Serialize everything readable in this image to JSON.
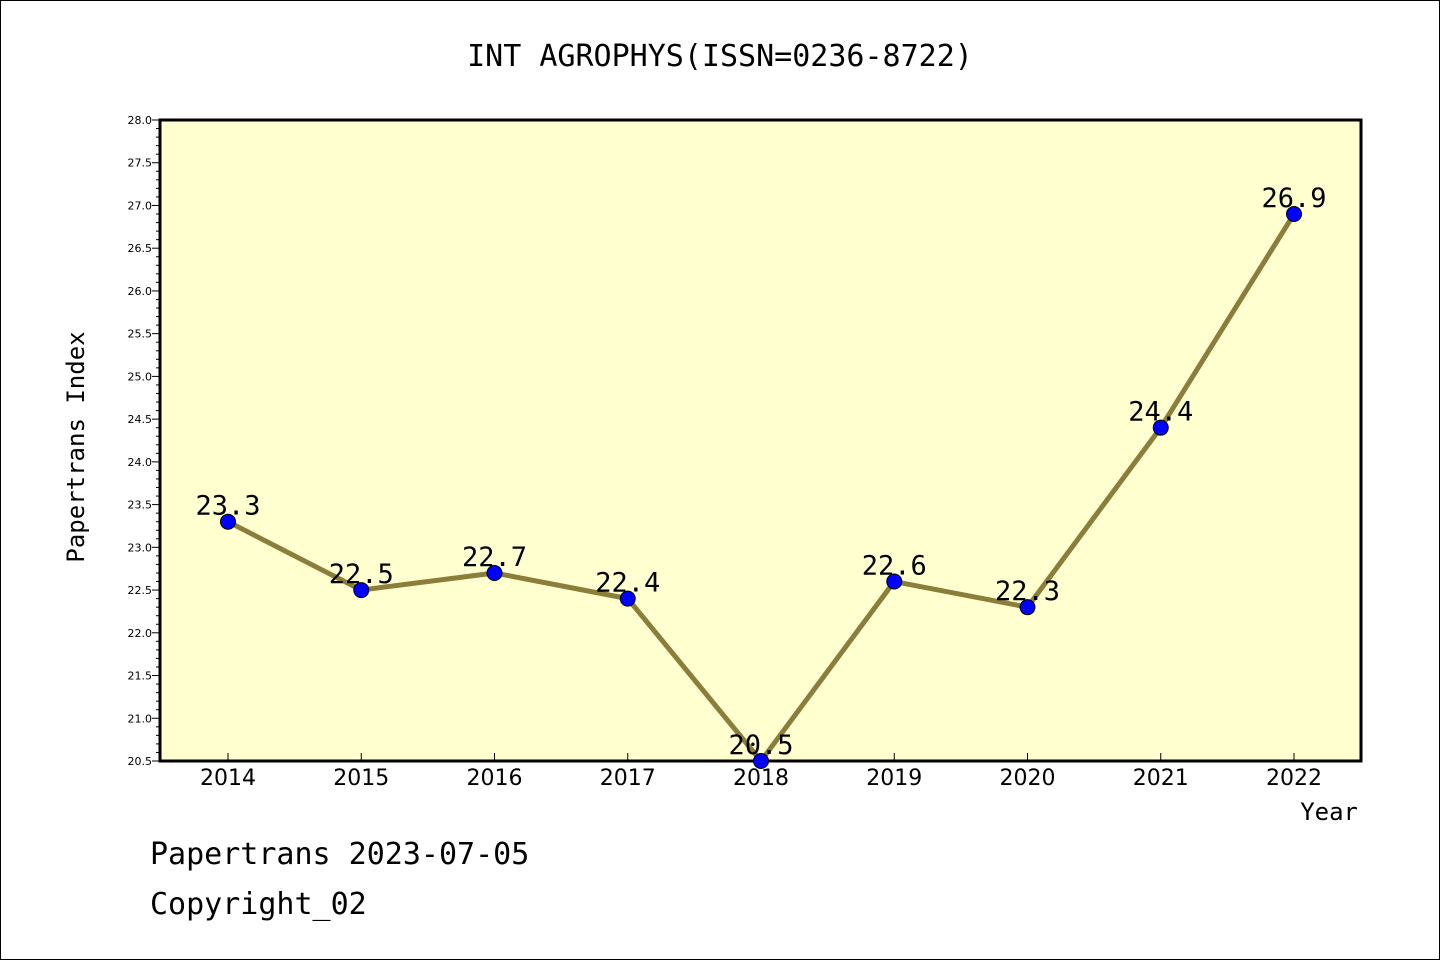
{
  "chart_data": {
    "type": "line",
    "title": "INT AGROPHYS(ISSN=0236-8722)",
    "xlabel": "Year",
    "ylabel": "Papertrans Index",
    "ylim": [
      20.5,
      28.0
    ],
    "y_ticks": [
      "20.5",
      "21.0",
      "21.5",
      "22.0",
      "22.5",
      "23.0",
      "23.5",
      "24.0",
      "24.5",
      "25.0",
      "25.5",
      "26.0",
      "26.5",
      "27.0",
      "27.5",
      "28.0"
    ],
    "categories": [
      "2014",
      "2015",
      "2016",
      "2017",
      "2018",
      "2019",
      "2020",
      "2021",
      "2022"
    ],
    "series": [
      {
        "values": [
          23.3,
          22.5,
          22.7,
          22.4,
          20.5,
          22.6,
          22.3,
          24.4,
          26.9
        ],
        "labels": [
          "23.3",
          "22.5",
          "22.7",
          "22.4",
          "20.5",
          "22.6",
          "22.3",
          "24.4",
          "26.9"
        ]
      }
    ],
    "grid": false,
    "colors": {
      "plot_background": "#ffffd0",
      "line": "#8b7d3a",
      "marker": "#0000ff"
    }
  },
  "footer": {
    "line1": "Papertrans 2023-07-05",
    "line2": "Copyright_02"
  }
}
